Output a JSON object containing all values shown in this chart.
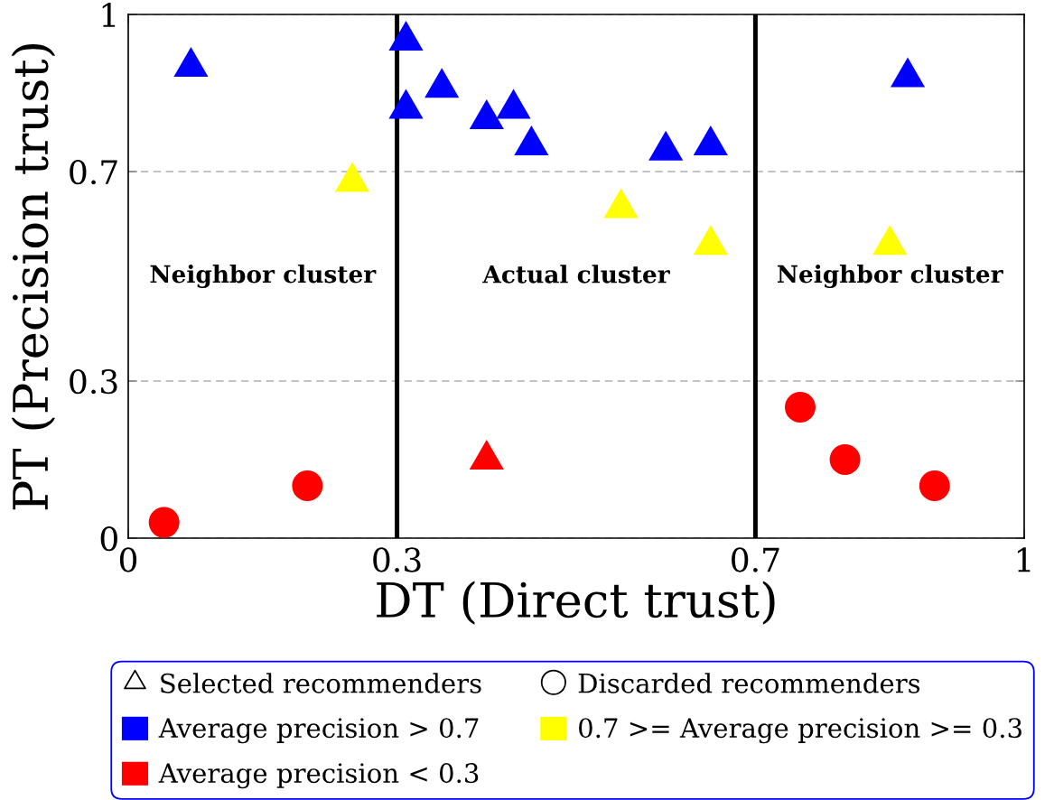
{
  "chart_data": {
    "type": "scatter",
    "xlabel": "DT (Direct trust)",
    "ylabel": "PT (Precision trust)",
    "xlim": [
      0,
      1
    ],
    "ylim": [
      0,
      1
    ],
    "xticks": [
      0,
      0.3,
      0.7,
      1
    ],
    "yticks": [
      0,
      0.3,
      0.7,
      1
    ],
    "grid": "y",
    "legend": "bottom",
    "series": [
      {
        "name": "Average precision > 0.7",
        "color": "#0000ff",
        "marker": "triangle",
        "x": [
          0.07,
          0.31,
          0.31,
          0.35,
          0.4,
          0.43,
          0.45,
          0.6,
          0.65,
          0.87
        ],
        "values": [
          0.9,
          0.95,
          0.82,
          0.86,
          0.8,
          0.82,
          0.75,
          0.74,
          0.75,
          0.88
        ]
      },
      {
        "name": "0.7 >= Average precision >= 0.3",
        "color": "#ffff00",
        "marker": "triangle",
        "x": [
          0.25,
          0.55,
          0.65,
          0.85
        ],
        "values": [
          0.68,
          0.63,
          0.56,
          0.56
        ]
      },
      {
        "name": "Average precision < 0.3",
        "color": "#ff0000",
        "marker": "triangle",
        "x": [
          0.4
        ],
        "values": [
          0.15
        ]
      },
      {
        "color": "#ff0000",
        "marker": "circle",
        "x": [
          0.04,
          0.2,
          0.75,
          0.8,
          0.9
        ],
        "values": [
          0.03,
          0.1,
          0.25,
          0.15,
          0.1
        ]
      }
    ],
    "ref_lines": [
      {
        "axis": "x",
        "value": 0.3,
        "color": "#000000"
      },
      {
        "axis": "x",
        "value": 0.7,
        "color": "#000000"
      }
    ],
    "annotations": [
      "Neighbor cluster",
      "Actual cluster",
      "Neighbor cluster",
      "Selected recommenders",
      "Discarded recommenders"
    ]
  }
}
